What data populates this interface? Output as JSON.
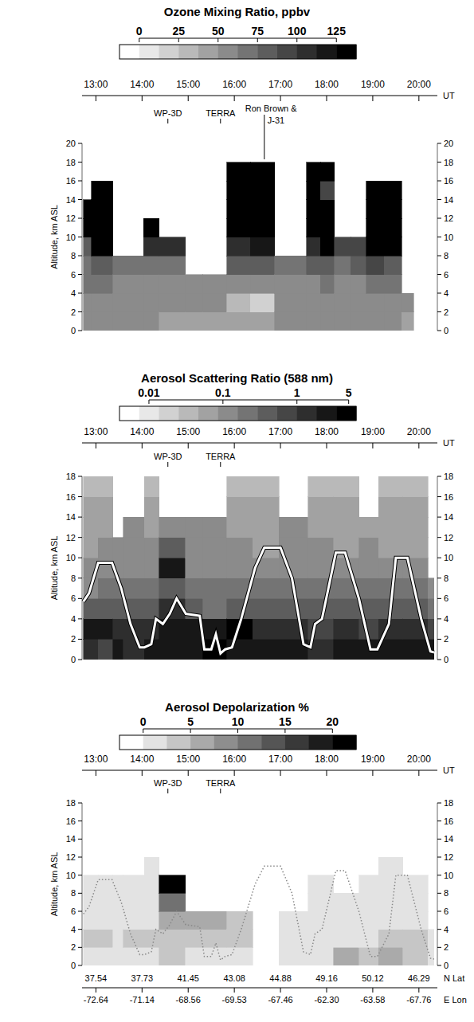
{
  "chart_data": [
    {
      "type": "heatmap",
      "title": "Ozone Mixing Ratio, ppbv",
      "xlabel": "UT",
      "ylabel": "Altitude, km ASL",
      "xlim": [
        12.7,
        20.4
      ],
      "xticks": [
        {
          "value": 13,
          "label": "13:00"
        },
        {
          "value": 14,
          "label": "14:00"
        },
        {
          "value": 15,
          "label": "15:00"
        },
        {
          "value": 16,
          "label": "16:00"
        },
        {
          "value": 17,
          "label": "17:00"
        },
        {
          "value": 18,
          "label": "18:00"
        },
        {
          "value": 19,
          "label": "19:00"
        },
        {
          "value": 20,
          "label": "20:00"
        }
      ],
      "ylim": [
        0,
        20
      ],
      "yticks": [
        0,
        2,
        4,
        6,
        8,
        10,
        12,
        14,
        16,
        18,
        20
      ],
      "y2lim": [
        0,
        20
      ],
      "y2ticks": [
        0,
        2,
        4,
        6,
        8,
        10,
        12,
        14,
        16,
        18,
        20
      ],
      "colorbar": {
        "range": [
          -12.5,
          137.5
        ],
        "ticks": [
          0,
          25,
          50,
          75,
          100,
          125
        ],
        "levels": 12
      },
      "annotations": [
        {
          "text": "WP-3D",
          "x": 14.56
        },
        {
          "text": "TERRA",
          "x": 15.7
        },
        {
          "text": "Ron Brown &",
          "text2": "J-31",
          "x": 16.65
        }
      ],
      "x_edges": [
        12.73,
        12.9,
        13.37,
        14.03,
        14.37,
        14.94,
        15.32,
        15.84,
        16.35,
        16.87,
        17.56,
        17.87,
        18.17,
        18.52,
        18.86,
        19.25,
        19.63,
        19.89
      ],
      "y_edges": [
        0,
        2,
        4,
        6,
        8,
        10,
        12,
        14,
        16,
        18,
        20
      ],
      "values": [
        [
          55,
          60,
          65,
          70,
          85,
          130,
          130,
          null,
          null,
          null
        ],
        [
          55,
          60,
          65,
          75,
          130,
          130,
          130,
          130,
          null,
          null
        ],
        [
          50,
          55,
          60,
          70,
          null,
          null,
          null,
          null,
          null,
          null
        ],
        [
          50,
          55,
          60,
          70,
          100,
          130,
          null,
          null,
          null,
          null
        ],
        [
          45,
          55,
          60,
          65,
          100,
          null,
          null,
          null,
          null,
          null
        ],
        [
          45,
          50,
          55,
          null,
          null,
          null,
          null,
          null,
          null,
          null
        ],
        [
          45,
          50,
          55,
          null,
          null,
          null,
          null,
          null,
          null,
          null
        ],
        [
          40,
          25,
          60,
          75,
          110,
          130,
          130,
          130,
          130,
          null
        ],
        [
          45,
          20,
          60,
          80,
          120,
          130,
          130,
          130,
          130,
          null
        ],
        [
          50,
          55,
          60,
          70,
          null,
          null,
          null,
          null,
          null,
          null
        ],
        [
          50,
          55,
          60,
          75,
          110,
          130,
          130,
          130,
          130,
          null
        ],
        [
          50,
          55,
          65,
          85,
          130,
          130,
          130,
          90,
          130,
          null
        ],
        [
          50,
          55,
          60,
          70,
          90,
          null,
          null,
          null,
          null,
          null
        ],
        [
          50,
          55,
          60,
          75,
          90,
          null,
          null,
          null,
          null,
          null
        ],
        [
          50,
          55,
          65,
          90,
          130,
          130,
          130,
          130,
          null,
          null
        ],
        [
          50,
          55,
          65,
          85,
          130,
          130,
          130,
          130,
          null,
          null
        ],
        [
          45,
          50,
          null,
          null,
          null,
          null,
          null,
          null,
          null,
          null
        ]
      ]
    },
    {
      "type": "heatmap",
      "title": "Aerosol Scattering Ratio (588 nm)",
      "xlabel": "UT",
      "ylabel": "Altitude, km ASL",
      "xlim": [
        12.7,
        20.4
      ],
      "xticks": [
        {
          "value": 13,
          "label": "13:00"
        },
        {
          "value": 14,
          "label": "14:00"
        },
        {
          "value": 15,
          "label": "15:00"
        },
        {
          "value": 16,
          "label": "16:00"
        },
        {
          "value": 17,
          "label": "17:00"
        },
        {
          "value": 18,
          "label": "18:00"
        },
        {
          "value": 19,
          "label": "19:00"
        },
        {
          "value": 20,
          "label": "20:00"
        }
      ],
      "ylim": [
        0,
        18
      ],
      "yticks": [
        0,
        2,
        4,
        6,
        8,
        10,
        12,
        14,
        16,
        18
      ],
      "y2lim": [
        0,
        18
      ],
      "y2ticks": [
        0,
        2,
        4,
        6,
        8,
        10,
        12,
        14,
        16,
        18
      ],
      "colorbar": {
        "range": [
          0.004,
          6.3
        ],
        "ticks": [
          0.01,
          0.1,
          1,
          5
        ],
        "levels": 12,
        "log": true
      },
      "annotations": [
        {
          "text": "WP-3D",
          "x": 14.56
        },
        {
          "text": "TERRA",
          "x": 15.7
        }
      ],
      "x_edges": [
        12.73,
        13.05,
        13.37,
        13.59,
        14.05,
        14.37,
        14.94,
        15.32,
        15.84,
        16.4,
        16.97,
        17.6,
        18.15,
        18.7,
        19.13,
        19.65,
        20.2,
        20.33
      ],
      "y_edges": [
        0,
        2,
        4,
        6,
        8,
        10,
        12,
        14,
        16,
        18
      ],
      "values": [
        [
          1.5,
          2,
          0.3,
          0.15,
          0.1,
          0.08,
          0.08,
          0.05,
          0.03
        ],
        [
          1,
          2.5,
          0.4,
          0.2,
          0.1,
          0.1,
          0.08,
          0.05,
          0.03
        ],
        [
          2,
          1.5,
          0.3,
          0.2,
          0.15,
          0.12,
          null,
          null,
          null
        ],
        [
          1.5,
          1.2,
          0.3,
          0.2,
          0.15,
          0.12,
          0.1,
          null,
          null
        ],
        [
          2,
          1.5,
          0.4,
          0.2,
          0.15,
          0.1,
          0.08,
          0.05,
          0.03
        ],
        [
          3,
          2,
          1.5,
          0.5,
          2,
          0.3,
          0.15,
          null,
          null
        ],
        [
          3,
          2.5,
          0.3,
          0.2,
          0.15,
          0.12,
          0.1,
          null,
          null
        ],
        [
          4,
          3,
          0.2,
          0.2,
          0.15,
          0.12,
          0.1,
          null,
          null
        ],
        [
          3,
          3.5,
          0.3,
          0.2,
          0.1,
          0.1,
          0.08,
          0.05,
          0.03
        ],
        [
          2,
          1.5,
          0.4,
          0.2,
          0.1,
          0.08,
          0.08,
          0.05,
          0.03
        ],
        [
          3,
          1.5,
          0.3,
          0.2,
          0.15,
          0.12,
          0.1,
          null,
          null
        ],
        [
          1.5,
          1,
          0.3,
          0.2,
          0.15,
          0.1,
          0.08,
          0.05,
          0.03
        ],
        [
          2,
          1.5,
          0.3,
          0.2,
          0.1,
          0.08,
          0.06,
          0.05,
          0.03
        ],
        [
          2.5,
          1,
          0.3,
          0.2,
          0.15,
          0.1,
          0.08,
          null,
          null
        ],
        [
          3,
          1.5,
          0.4,
          0.2,
          0.1,
          0.08,
          0.06,
          0.05,
          0.03
        ],
        [
          3,
          1.5,
          0.3,
          0.2,
          0.1,
          0.08,
          0.06,
          0.05,
          0.03
        ],
        [
          2,
          0.8,
          0.2,
          0.15,
          null,
          null,
          null,
          null,
          null
        ]
      ],
      "flight_altitude": {
        "color": "#ffffff",
        "line_style": "solid",
        "x": [
          12.73,
          12.85,
          13.05,
          13.35,
          13.55,
          13.75,
          13.95,
          14.05,
          14.2,
          14.3,
          14.45,
          14.6,
          14.75,
          14.95,
          15.25,
          15.35,
          15.5,
          15.6,
          15.7,
          15.8,
          15.95,
          16.15,
          16.45,
          16.65,
          17.0,
          17.25,
          17.5,
          17.65,
          17.75,
          17.9,
          18.2,
          18.4,
          18.7,
          18.95,
          19.1,
          19.35,
          19.5,
          19.75,
          20.05,
          20.25,
          20.33
        ],
        "y": [
          5.7,
          6.5,
          9.5,
          9.5,
          7,
          3.5,
          1.2,
          1.2,
          1.5,
          4,
          3.5,
          4.5,
          6,
          4.5,
          4.3,
          1,
          1,
          2.5,
          0.6,
          1,
          1.2,
          4,
          9,
          11,
          11,
          8,
          1.5,
          1.2,
          3.5,
          4,
          10.5,
          10.5,
          6,
          1,
          1,
          3.5,
          10,
          10,
          4,
          0.8,
          0.7
        ]
      }
    },
    {
      "type": "heatmap",
      "title": "Aerosol Depolarization %",
      "xlabel": "UT",
      "ylabel": "Altitude, km ASL",
      "xlim": [
        12.7,
        20.4
      ],
      "xticks": [
        {
          "value": 13,
          "label": "13:00"
        },
        {
          "value": 14,
          "label": "14:00"
        },
        {
          "value": 15,
          "label": "15:00"
        },
        {
          "value": 16,
          "label": "16:00"
        },
        {
          "value": 17,
          "label": "17:00"
        },
        {
          "value": 18,
          "label": "18:00"
        },
        {
          "value": 19,
          "label": "19:00"
        },
        {
          "value": 20,
          "label": "20:00"
        }
      ],
      "ylim": [
        0,
        18
      ],
      "yticks": [
        0,
        2,
        4,
        6,
        8,
        10,
        12,
        14,
        16,
        18
      ],
      "y2lim": [
        0,
        18
      ],
      "y2ticks": [
        0,
        2,
        4,
        6,
        8,
        10,
        12,
        14,
        16,
        18
      ],
      "colorbar": {
        "range": [
          -2.5,
          22.5
        ],
        "ticks": [
          0,
          5,
          10,
          15,
          20
        ],
        "levels": 10
      },
      "annotations": [
        {
          "text": "WP-3D",
          "x": 14.56
        },
        {
          "text": "TERRA",
          "x": 15.7
        }
      ],
      "x_edges": [
        12.73,
        13.05,
        13.37,
        13.59,
        14.05,
        14.37,
        14.94,
        15.32,
        15.84,
        16.4,
        16.97,
        17.6,
        18.15,
        18.7,
        19.13,
        19.65,
        20.2,
        20.33
      ],
      "y_edges": [
        0,
        2,
        4,
        6,
        8,
        10,
        12,
        14,
        16,
        18
      ],
      "values": [
        [
          2,
          3,
          2,
          2,
          1.5,
          null,
          null,
          null,
          null
        ],
        [
          2,
          3,
          2,
          2,
          1.5,
          null,
          null,
          null,
          null
        ],
        [
          2,
          2,
          2,
          1.5,
          1,
          null,
          null,
          null,
          null
        ],
        [
          2,
          3,
          2,
          1.5,
          1,
          null,
          null,
          null,
          null
        ],
        [
          2,
          4,
          2,
          2,
          1.5,
          2,
          null,
          null,
          null
        ],
        [
          3,
          4,
          5,
          10,
          22,
          null,
          null,
          null,
          null
        ],
        [
          2,
          3,
          6,
          null,
          null,
          null,
          null,
          null,
          null
        ],
        [
          2,
          3,
          5,
          null,
          null,
          null,
          null,
          null,
          null
        ],
        [
          2,
          3,
          4,
          null,
          null,
          null,
          null,
          null,
          null
        ],
        [
          null,
          null,
          null,
          null,
          null,
          null,
          null,
          null,
          null
        ],
        [
          1,
          2,
          1,
          null,
          null,
          null,
          null,
          null,
          null
        ],
        [
          1,
          2,
          1,
          1,
          1,
          null,
          null,
          null,
          null
        ],
        [
          5,
          2,
          1,
          1,
          null,
          null,
          null,
          null,
          null
        ],
        [
          3,
          2,
          2,
          1,
          1,
          null,
          null,
          null,
          null
        ],
        [
          6,
          3,
          2,
          1,
          1,
          1,
          null,
          null,
          null
        ],
        [
          4,
          3,
          2,
          1,
          1,
          null,
          null,
          null,
          null
        ],
        [
          2,
          2,
          null,
          null,
          null,
          null,
          null,
          null,
          null
        ]
      ],
      "flight_altitude": {
        "color": "#888888",
        "line_style": "dotted",
        "x": [
          12.73,
          12.85,
          13.05,
          13.35,
          13.55,
          13.75,
          13.95,
          14.05,
          14.2,
          14.3,
          14.45,
          14.6,
          14.75,
          14.95,
          15.25,
          15.35,
          15.5,
          15.6,
          15.7,
          15.8,
          15.95,
          16.15,
          16.45,
          16.65,
          17.0,
          17.25,
          17.5,
          17.65,
          17.75,
          17.9,
          18.2,
          18.4,
          18.7,
          18.95,
          19.1,
          19.35,
          19.5,
          19.75,
          20.05,
          20.25,
          20.33
        ],
        "y": [
          5.7,
          6.5,
          9.5,
          9.5,
          7,
          3.5,
          1.2,
          1.2,
          1.5,
          4,
          3.5,
          4.5,
          6,
          4.5,
          4.3,
          1,
          1,
          2.5,
          0.6,
          1,
          1.2,
          4,
          9,
          11,
          11,
          8,
          1.5,
          1.2,
          3.5,
          4,
          10.5,
          10.5,
          6,
          1,
          1,
          3.5,
          10,
          10,
          4,
          0.8,
          0.7
        ]
      },
      "lat_axis": {
        "label": "N Lat",
        "ticks": [
          {
            "value": 13,
            "label": "37.54"
          },
          {
            "value": 14,
            "label": "37.73"
          },
          {
            "value": 15,
            "label": "41.45"
          },
          {
            "value": 16,
            "label": "43.08"
          },
          {
            "value": 17,
            "label": "44.88"
          },
          {
            "value": 18,
            "label": "49.16"
          },
          {
            "value": 19,
            "label": "50.12"
          },
          {
            "value": 20,
            "label": "46.29"
          }
        ]
      },
      "lon_axis": {
        "label": "E Lon",
        "ticks": [
          {
            "value": 13,
            "label": "-72.64"
          },
          {
            "value": 14,
            "label": "-71.14"
          },
          {
            "value": 15,
            "label": "-68.56"
          },
          {
            "value": 16,
            "label": "-69.53"
          },
          {
            "value": 17,
            "label": "-67.46"
          },
          {
            "value": 18,
            "label": "-62.30"
          },
          {
            "value": 19,
            "label": "-63.58"
          },
          {
            "value": 20,
            "label": "-67.76"
          }
        ]
      }
    }
  ]
}
